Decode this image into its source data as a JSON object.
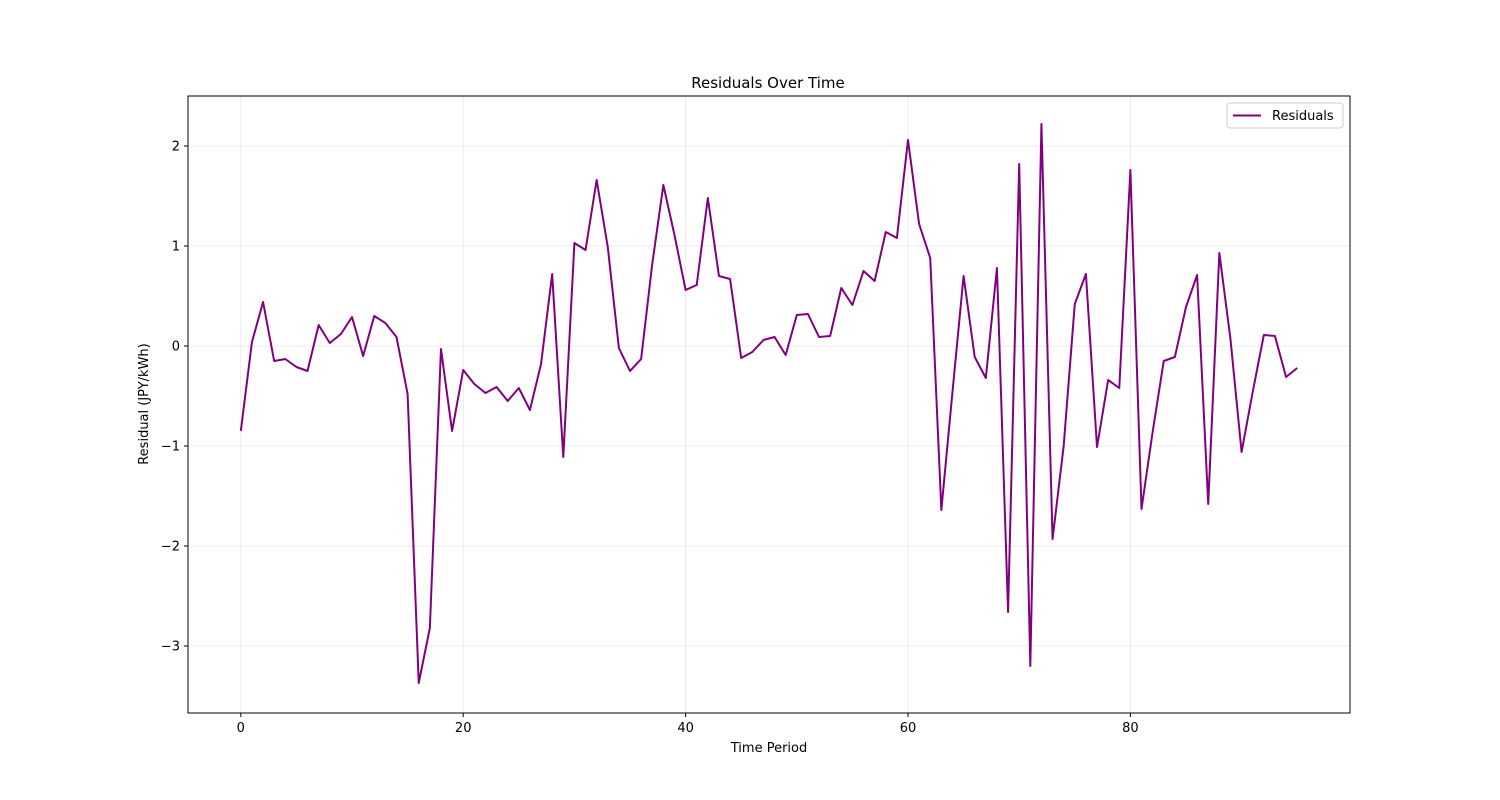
{
  "chart_data": {
    "type": "line",
    "title": "Residuals Over Time",
    "xlabel": "Time Period",
    "ylabel": "Residual (JPY/kWh)",
    "xlim": [
      -4.75,
      99.75
    ],
    "ylim": [
      -3.67,
      2.5
    ],
    "xticks": [
      0,
      20,
      40,
      60,
      80
    ],
    "yticks": [
      -3,
      -2,
      -1,
      0,
      1,
      2
    ],
    "grid": true,
    "legend_position": "top-right",
    "series": [
      {
        "name": "Residuals",
        "color": "#800080",
        "x": [
          0,
          1,
          2,
          3,
          4,
          5,
          6,
          7,
          8,
          9,
          10,
          11,
          12,
          13,
          14,
          15,
          16,
          17,
          18,
          19,
          20,
          21,
          22,
          23,
          24,
          25,
          26,
          27,
          28,
          29,
          30,
          31,
          32,
          33,
          34,
          35,
          36,
          37,
          38,
          39,
          40,
          41,
          42,
          43,
          44,
          45,
          46,
          47,
          48,
          49,
          50,
          51,
          52,
          53,
          54,
          55,
          56,
          57,
          58,
          59,
          60,
          61,
          62,
          63,
          64,
          65,
          66,
          67,
          68,
          69,
          70,
          71,
          72,
          73,
          74,
          75,
          76,
          77,
          78,
          79,
          80,
          81,
          82,
          83,
          84,
          85,
          86,
          87,
          88,
          89,
          90,
          91,
          92,
          93,
          94,
          95
        ],
        "values": [
          -0.85,
          0.04,
          0.44,
          -0.15,
          -0.13,
          -0.21,
          -0.25,
          0.21,
          0.03,
          0.12,
          0.29,
          -0.1,
          0.3,
          0.23,
          0.09,
          -0.48,
          -3.37,
          -2.82,
          -0.03,
          -0.85,
          -0.24,
          -0.38,
          -0.47,
          -0.41,
          -0.55,
          -0.42,
          -0.64,
          -0.18,
          0.72,
          -1.11,
          1.03,
          0.96,
          1.66,
          0.99,
          -0.02,
          -0.25,
          -0.13,
          0.82,
          1.61,
          1.11,
          0.56,
          0.61,
          1.48,
          0.7,
          0.67,
          -0.12,
          -0.06,
          0.06,
          0.09,
          -0.09,
          0.31,
          0.32,
          0.09,
          0.1,
          0.58,
          0.41,
          0.75,
          0.65,
          1.14,
          1.08,
          2.06,
          1.22,
          0.88,
          -1.64,
          -0.46,
          0.7,
          -0.11,
          -0.32,
          0.78,
          -2.66,
          1.82,
          -3.2,
          2.22,
          -1.93,
          -1.0,
          0.42,
          0.72,
          -1.01,
          -0.34,
          -0.42,
          1.76,
          -1.63,
          -0.86,
          -0.15,
          -0.11,
          0.39,
          0.71,
          -1.58,
          0.93,
          0.07,
          -1.06,
          -0.46,
          0.11,
          0.1,
          -0.31,
          -0.22
        ]
      }
    ]
  }
}
